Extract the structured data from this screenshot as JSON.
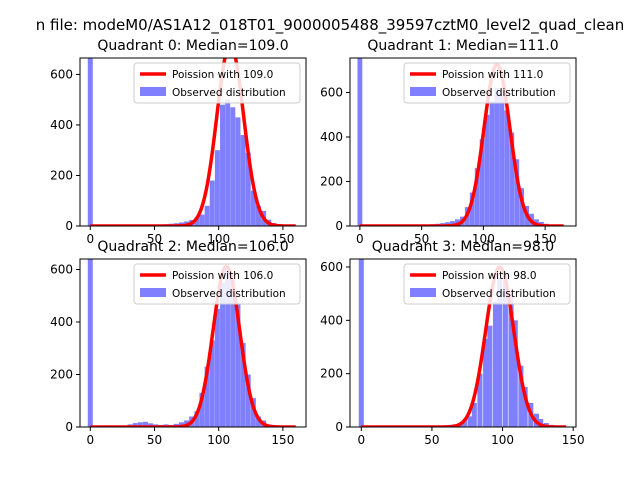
{
  "figure": {
    "suptitle": "n file: modeM0/AS1A12_018T01_9000005488_39597cztM0_level2_quad_clean",
    "colors": {
      "bar": "#8080ff",
      "poisson": "#ff0000",
      "axis": "#000000",
      "background": "#ffffff"
    }
  },
  "chart_data": [
    {
      "type": "bar",
      "title": "Quadrant 0: Median=109.0",
      "median": 109.0,
      "xlim": [
        -8,
        168
      ],
      "ylim": [
        0,
        665
      ],
      "xticks": [
        "0",
        "50",
        "100",
        "150"
      ],
      "xtick_values": [
        0,
        50,
        100,
        150
      ],
      "yticks": [
        "0",
        "200",
        "400",
        "600"
      ],
      "ytick_values": [
        0,
        200,
        400,
        600
      ],
      "bin_width": 3.9,
      "observed": {
        "name": "Observed distribution",
        "bins": [
          {
            "x": 0,
            "y": 665
          },
          {
            "x": 35,
            "y": 2
          },
          {
            "x": 39,
            "y": 2
          },
          {
            "x": 43,
            "y": 3
          },
          {
            "x": 47,
            "y": 3
          },
          {
            "x": 51,
            "y": 5
          },
          {
            "x": 55,
            "y": 6
          },
          {
            "x": 59,
            "y": 7
          },
          {
            "x": 63,
            "y": 9
          },
          {
            "x": 67,
            "y": 11
          },
          {
            "x": 71,
            "y": 14
          },
          {
            "x": 75,
            "y": 18
          },
          {
            "x": 79,
            "y": 24
          },
          {
            "x": 83,
            "y": 33
          },
          {
            "x": 87,
            "y": 45
          },
          {
            "x": 91,
            "y": 80
          },
          {
            "x": 95,
            "y": 180
          },
          {
            "x": 99,
            "y": 300
          },
          {
            "x": 103,
            "y": 480
          },
          {
            "x": 107,
            "y": 500
          },
          {
            "x": 111,
            "y": 470
          },
          {
            "x": 115,
            "y": 430
          },
          {
            "x": 119,
            "y": 360
          },
          {
            "x": 123,
            "y": 290
          },
          {
            "x": 127,
            "y": 140
          },
          {
            "x": 131,
            "y": 80
          },
          {
            "x": 135,
            "y": 60
          },
          {
            "x": 139,
            "y": 25
          },
          {
            "x": 143,
            "y": 12
          },
          {
            "x": 147,
            "y": 8
          },
          {
            "x": 151,
            "y": 5
          },
          {
            "x": 155,
            "y": 3
          },
          {
            "x": 159,
            "y": 2
          }
        ]
      },
      "fit": {
        "name": "Poission with 109.0",
        "lambda": 109.0,
        "peak": 720,
        "sigma": 10.4,
        "x_range": [
          0,
          160
        ]
      }
    },
    {
      "type": "bar",
      "title": "Quadrant 1: Median=111.0",
      "median": 111.0,
      "xlim": [
        -8,
        175
      ],
      "ylim": [
        0,
        755
      ],
      "xticks": [
        "0",
        "50",
        "100",
        "150"
      ],
      "xtick_values": [
        0,
        50,
        100,
        150
      ],
      "yticks": [
        "0",
        "200",
        "400",
        "600"
      ],
      "ytick_values": [
        0,
        200,
        400,
        600
      ],
      "bin_width": 3.9,
      "observed": {
        "name": "Observed distribution",
        "bins": [
          {
            "x": 0,
            "y": 755
          },
          {
            "x": 39,
            "y": 2
          },
          {
            "x": 43,
            "y": 3
          },
          {
            "x": 47,
            "y": 4
          },
          {
            "x": 51,
            "y": 4
          },
          {
            "x": 55,
            "y": 6
          },
          {
            "x": 59,
            "y": 8
          },
          {
            "x": 63,
            "y": 10
          },
          {
            "x": 67,
            "y": 13
          },
          {
            "x": 71,
            "y": 17
          },
          {
            "x": 75,
            "y": 22
          },
          {
            "x": 79,
            "y": 30
          },
          {
            "x": 83,
            "y": 42
          },
          {
            "x": 87,
            "y": 85
          },
          {
            "x": 91,
            "y": 150
          },
          {
            "x": 95,
            "y": 260
          },
          {
            "x": 99,
            "y": 390
          },
          {
            "x": 103,
            "y": 500
          },
          {
            "x": 107,
            "y": 560
          },
          {
            "x": 111,
            "y": 620
          },
          {
            "x": 115,
            "y": 600
          },
          {
            "x": 119,
            "y": 520
          },
          {
            "x": 123,
            "y": 420
          },
          {
            "x": 127,
            "y": 300
          },
          {
            "x": 131,
            "y": 170
          },
          {
            "x": 135,
            "y": 90
          },
          {
            "x": 139,
            "y": 55
          },
          {
            "x": 143,
            "y": 30
          },
          {
            "x": 147,
            "y": 18
          },
          {
            "x": 151,
            "y": 10
          },
          {
            "x": 155,
            "y": 6
          },
          {
            "x": 159,
            "y": 4
          },
          {
            "x": 163,
            "y": 2
          }
        ]
      },
      "fit": {
        "name": "Poission with 111.0",
        "lambda": 111.0,
        "peak": 725,
        "sigma": 10.5,
        "x_range": [
          0,
          165
        ]
      }
    },
    {
      "type": "bar",
      "title": "Quadrant 2: Median=106.0",
      "median": 106.0,
      "xlim": [
        -8,
        168
      ],
      "ylim": [
        0,
        640
      ],
      "xticks": [
        "0",
        "50",
        "100",
        "150"
      ],
      "xtick_values": [
        0,
        50,
        100,
        150
      ],
      "yticks": [
        "0",
        "200",
        "400",
        "600"
      ],
      "ytick_values": [
        0,
        200,
        400,
        600
      ],
      "bin_width": 3.9,
      "observed": {
        "name": "Observed distribution",
        "bins": [
          {
            "x": 0,
            "y": 640
          },
          {
            "x": 31,
            "y": 10
          },
          {
            "x": 35,
            "y": 15
          },
          {
            "x": 39,
            "y": 18
          },
          {
            "x": 43,
            "y": 20
          },
          {
            "x": 47,
            "y": 14
          },
          {
            "x": 51,
            "y": 10
          },
          {
            "x": 55,
            "y": 8
          },
          {
            "x": 59,
            "y": 10
          },
          {
            "x": 63,
            "y": 8
          },
          {
            "x": 67,
            "y": 12
          },
          {
            "x": 71,
            "y": 18
          },
          {
            "x": 75,
            "y": 25
          },
          {
            "x": 79,
            "y": 40
          },
          {
            "x": 83,
            "y": 60
          },
          {
            "x": 87,
            "y": 130
          },
          {
            "x": 91,
            "y": 230
          },
          {
            "x": 95,
            "y": 330
          },
          {
            "x": 99,
            "y": 450
          },
          {
            "x": 103,
            "y": 550
          },
          {
            "x": 107,
            "y": 610
          },
          {
            "x": 111,
            "y": 560
          },
          {
            "x": 115,
            "y": 470
          },
          {
            "x": 119,
            "y": 320
          },
          {
            "x": 123,
            "y": 200
          },
          {
            "x": 127,
            "y": 110
          },
          {
            "x": 131,
            "y": 40
          },
          {
            "x": 135,
            "y": 25
          },
          {
            "x": 139,
            "y": 10
          },
          {
            "x": 143,
            "y": 6
          },
          {
            "x": 147,
            "y": 4
          },
          {
            "x": 151,
            "y": 2
          }
        ]
      },
      "fit": {
        "name": "Poission with 106.0",
        "lambda": 106.0,
        "peak": 612,
        "sigma": 10.3,
        "x_range": [
          0,
          160
        ]
      }
    },
    {
      "type": "bar",
      "title": "Quadrant 3: Median=98.0",
      "median": 98.0,
      "xlim": [
        -8,
        152
      ],
      "ylim": [
        0,
        630
      ],
      "xticks": [
        "0",
        "50",
        "100",
        "150"
      ],
      "xtick_values": [
        0,
        50,
        100,
        150
      ],
      "yticks": [
        "0",
        "200",
        "400",
        "600"
      ],
      "ytick_values": [
        0,
        200,
        400,
        600
      ],
      "bin_width": 3.6,
      "observed": {
        "name": "Observed distribution",
        "bins": [
          {
            "x": 0,
            "y": 630
          },
          {
            "x": 43,
            "y": 2
          },
          {
            "x": 47,
            "y": 2
          },
          {
            "x": 51,
            "y": 3
          },
          {
            "x": 55,
            "y": 4
          },
          {
            "x": 59,
            "y": 6
          },
          {
            "x": 63,
            "y": 8
          },
          {
            "x": 66,
            "y": 10
          },
          {
            "x": 70,
            "y": 15
          },
          {
            "x": 73,
            "y": 25
          },
          {
            "x": 77,
            "y": 40
          },
          {
            "x": 80,
            "y": 90
          },
          {
            "x": 84,
            "y": 200
          },
          {
            "x": 88,
            "y": 330
          },
          {
            "x": 91,
            "y": 380
          },
          {
            "x": 95,
            "y": 470
          },
          {
            "x": 98,
            "y": 560
          },
          {
            "x": 102,
            "y": 580
          },
          {
            "x": 106,
            "y": 500
          },
          {
            "x": 109,
            "y": 400
          },
          {
            "x": 113,
            "y": 230
          },
          {
            "x": 116,
            "y": 150
          },
          {
            "x": 120,
            "y": 90
          },
          {
            "x": 124,
            "y": 50
          },
          {
            "x": 127,
            "y": 30
          },
          {
            "x": 131,
            "y": 15
          },
          {
            "x": 134,
            "y": 8
          },
          {
            "x": 138,
            "y": 4
          },
          {
            "x": 141,
            "y": 2
          }
        ]
      },
      "fit": {
        "name": "Poission with 98.0",
        "lambda": 98.0,
        "peak": 600,
        "sigma": 9.9,
        "x_range": [
          0,
          145
        ]
      }
    }
  ]
}
